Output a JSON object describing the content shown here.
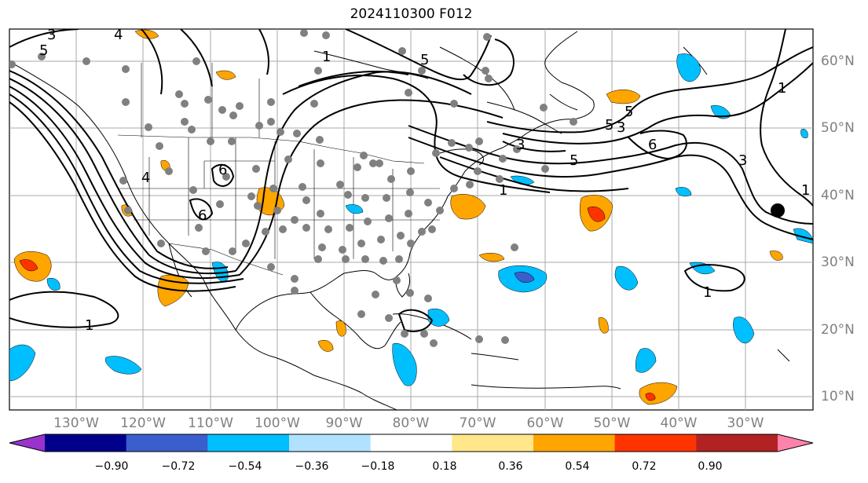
{
  "title": "2024110300 F012",
  "lon_labels": [
    "130°W",
    "120°W",
    "110°W",
    "100°W",
    "90°W",
    "80°W",
    "70°W",
    "60°W",
    "50°W",
    "40°W",
    "30°W"
  ],
  "lat_labels": [
    "60°N",
    "50°N",
    "40°N",
    "30°N",
    "20°N",
    "10°N"
  ],
  "colorbar": {
    "ticks": [
      "−0.90",
      "−0.72",
      "−0.54",
      "−0.36",
      "−0.18",
      "0.18",
      "0.36",
      "0.54",
      "0.72",
      "0.90"
    ],
    "colors": [
      "#9933cc",
      "#00008b",
      "#3a5fcd",
      "#00bfff",
      "#b0e2ff",
      "#ffffff",
      "#ffe78a",
      "#ffa500",
      "#ff3300",
      "#b22222",
      "#ff82ab"
    ]
  },
  "contour_labels": [
    "1",
    "1",
    "1",
    "1",
    "1",
    "1",
    "3",
    "3",
    "3",
    "3",
    "5",
    "5",
    "5",
    "6",
    "6",
    "6",
    "4",
    "4",
    "5",
    "5"
  ],
  "map": {
    "lon_range": [
      -140,
      -20
    ],
    "lat_range": [
      8,
      65
    ]
  }
}
